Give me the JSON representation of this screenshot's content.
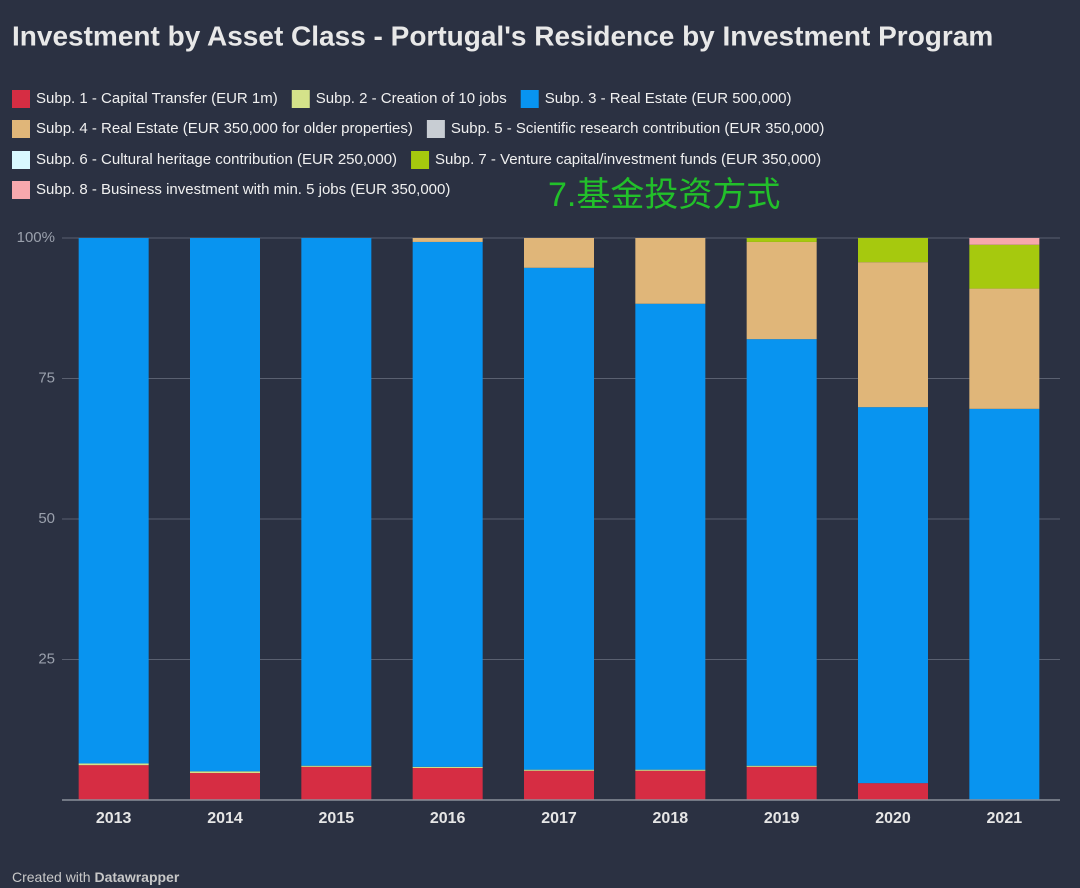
{
  "chart_data": {
    "type": "stacked_bar",
    "title": "Investment by Asset Class - Portugal's Residence by Investment Program",
    "annotation": "7.基金投资方式",
    "credit": {
      "prefix": "Created with",
      "brand": "Datawrapper"
    },
    "categories": [
      "2013",
      "2014",
      "2015",
      "2016",
      "2017",
      "2018",
      "2019",
      "2020",
      "2021"
    ],
    "series": [
      {
        "name": "Subp. 1 - Capital Transfer (EUR 1m)",
        "color": "#d62d43",
        "values": [
          6.2,
          4.8,
          5.9,
          5.7,
          5.2,
          5.2,
          5.9,
          3.0,
          0.1
        ]
      },
      {
        "name": "Subp. 2 - Creation of 10 jobs",
        "color": "#d4e28a",
        "values": [
          0.3,
          0.3,
          0.2,
          0.2,
          0.2,
          0.2,
          0.2,
          0,
          0
        ]
      },
      {
        "name": "Subp. 3 - Real Estate (EUR 500,000)",
        "color": "#0894f0",
        "values": [
          93.5,
          94.9,
          93.9,
          93.4,
          89.3,
          82.9,
          75.9,
          66.9,
          69.5
        ]
      },
      {
        "name": "Subp. 4 - Real Estate (EUR 350,000 for older properties)",
        "color": "#e0b679",
        "values": [
          0,
          0,
          0,
          0.7,
          5.3,
          11.7,
          17.3,
          25.8,
          21.4
        ]
      },
      {
        "name": "Subp. 5 - Scientific research contribution (EUR 350,000)",
        "color": "#c8cdd3",
        "values": [
          0,
          0,
          0,
          0,
          0,
          0,
          0,
          0,
          0
        ]
      },
      {
        "name": "Subp. 6 - Cultural heritage contribution (EUR 250,000)",
        "color": "#d8f8ff",
        "values": [
          0,
          0,
          0,
          0,
          0,
          0,
          0,
          0,
          0
        ]
      },
      {
        "name": "Subp. 7 - Venture capital/investment funds (EUR 350,000)",
        "color": "#a6c90e",
        "values": [
          0,
          0,
          0,
          0,
          0,
          0,
          0.7,
          4.3,
          7.8
        ]
      },
      {
        "name": "Subp. 8 - Business investment with min. 5 jobs (EUR 350,000)",
        "color": "#f7a8ad",
        "values": [
          0,
          0,
          0,
          0,
          0,
          0,
          0,
          0,
          1.2
        ]
      }
    ],
    "ylim": [
      0,
      100
    ],
    "yticks": [
      25,
      50,
      75,
      {
        "value": 100,
        "label": "100%"
      }
    ],
    "grid": true
  }
}
